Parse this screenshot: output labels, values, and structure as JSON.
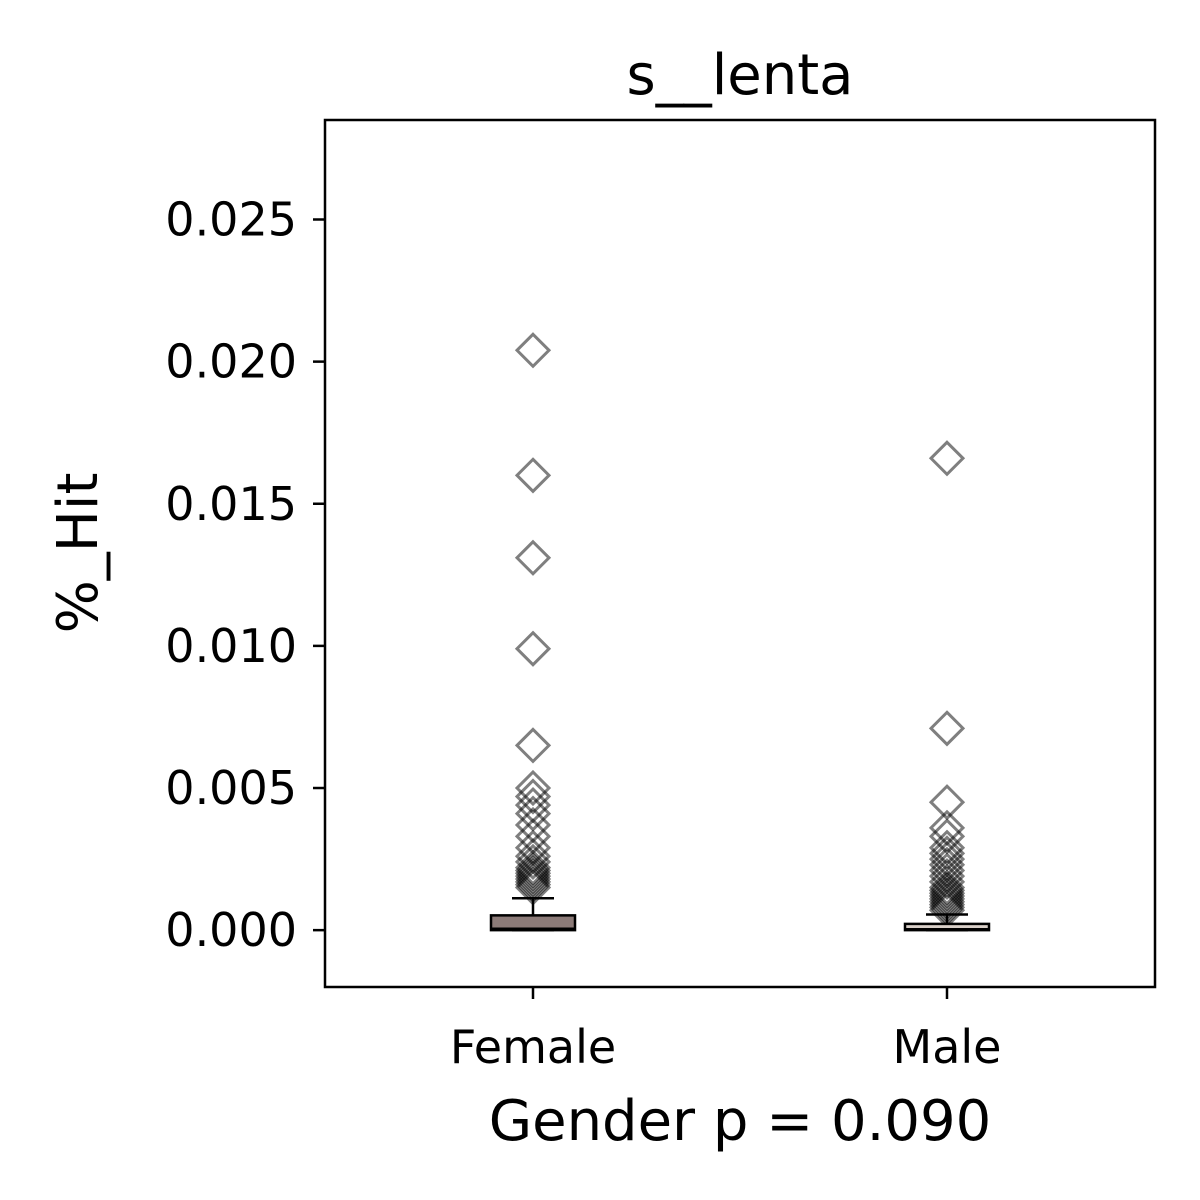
{
  "chart_data": {
    "type": "box",
    "title": "s__lenta",
    "xlabel": "Gender p = 0.090",
    "ylabel": "%_Hit",
    "ylim": [
      -0.002,
      0.0285
    ],
    "yticks": [
      "0.000",
      "0.005",
      "0.010",
      "0.015",
      "0.020",
      "0.025"
    ],
    "ytick_values": [
      0,
      0.005,
      0.01,
      0.015,
      0.02,
      0.025
    ],
    "categories": [
      "Female",
      "Male"
    ],
    "grid": false,
    "boxes": [
      {
        "category": "Female",
        "q1": 0.0,
        "median": 5e-05,
        "q3": 0.00052,
        "whisker_low": 0.0,
        "whisker_high": 0.00112,
        "color": "#8c7b78",
        "outliers": [
          0.0204,
          0.016,
          0.0131,
          0.0099,
          0.0065,
          0.005,
          0.0047,
          0.0044,
          0.0041,
          0.0037,
          0.0033,
          0.0029,
          0.0026,
          0.0024,
          0.0022,
          0.0021,
          0.002,
          0.0019,
          0.0018,
          0.0017,
          0.0016,
          0.0015
        ]
      },
      {
        "category": "Male",
        "q1": 0.0,
        "median": 3e-05,
        "q3": 0.00022,
        "whisker_low": 0.0,
        "whisker_high": 0.00055,
        "color": "#d8cfc8",
        "outliers": [
          0.0166,
          0.0071,
          0.0045,
          0.0036,
          0.0033,
          0.0029,
          0.0027,
          0.0025,
          0.0023,
          0.0021,
          0.0019,
          0.0017,
          0.0015,
          0.0014,
          0.0013,
          0.0012,
          0.0011,
          0.001,
          0.0009,
          0.0008,
          0.0007
        ]
      }
    ]
  }
}
